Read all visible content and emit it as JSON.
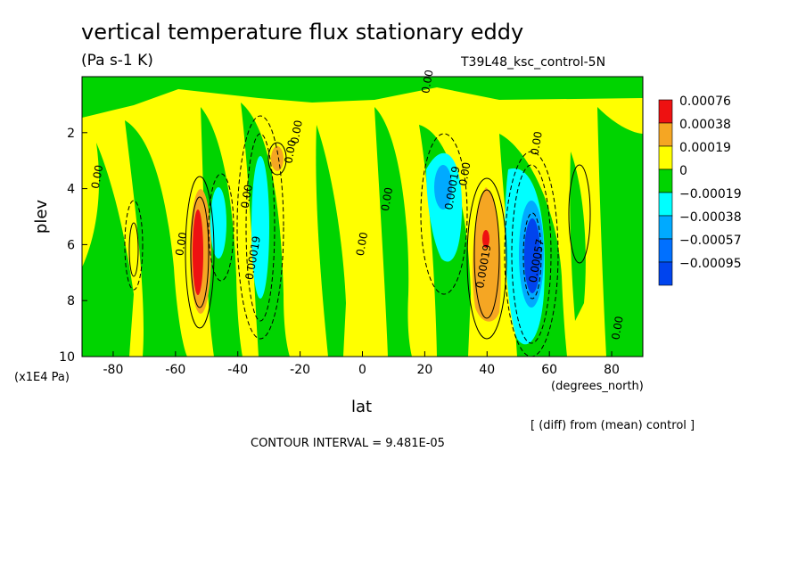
{
  "header": {
    "title": "vertical temperature flux stationary eddy",
    "units": "(Pa s-1 K)",
    "run": "T39L48_ksc_control-5N"
  },
  "footer": {
    "yunit": "(x1E4 Pa)",
    "xunit": "(degrees_north)",
    "diff_note": "[ (diff) from (mean) control ]",
    "contour_interval": "CONTOUR INTERVAL = 9.481E-05"
  },
  "chart_data": {
    "type": "heatmap",
    "title": "vertical temperature flux stationary eddy",
    "xlabel": "lat",
    "ylabel": "plev",
    "xlim": [
      -90,
      90
    ],
    "ylim": [
      0,
      10
    ],
    "y_inverted": true,
    "x_ticks": [
      -80,
      -60,
      -40,
      -20,
      0,
      20,
      40,
      60,
      80
    ],
    "y_ticks": [
      2,
      4,
      6,
      8,
      10
    ],
    "legend_position": "right",
    "legend": [
      {
        "label": "0.00076",
        "color": "#ee1111"
      },
      {
        "label": "0.00038",
        "color": "#f5a623"
      },
      {
        "label": "0.00019",
        "color": "#ffff00"
      },
      {
        "label": "0",
        "color": "#00d400"
      },
      {
        "label": "−0.00019",
        "color": "#00ffff"
      },
      {
        "label": "−0.00038",
        "color": "#00aaff"
      },
      {
        "label": "−0.00057",
        "color": "#0070ff"
      },
      {
        "label": "−0.00095",
        "color": "#0044ee"
      }
    ],
    "features": [
      {
        "lat": -53,
        "plev": 6.5,
        "value": 0.00076,
        "note": "positive maximum"
      },
      {
        "lat": -44,
        "plev": 6.0,
        "value": -0.00038
      },
      {
        "lat": -32,
        "plev": 6.0,
        "value": -0.00019
      },
      {
        "lat": -29,
        "plev": 3.2,
        "value": 0.00038
      },
      {
        "lat": 28,
        "plev": 4.5,
        "value": -0.00038
      },
      {
        "lat": 40,
        "plev": 6.5,
        "value": 0.00038,
        "peak": 0.00076
      },
      {
        "lat": 53,
        "plev": 6.3,
        "value": -0.00095,
        "note": "negative minimum"
      },
      {
        "lat": -72,
        "plev": 7.0,
        "value": 0.00019
      },
      {
        "lat": 70,
        "plev": 5.5,
        "value": 0.00019
      }
    ],
    "contour_labels": [
      {
        "text": "0.00",
        "lat": 22,
        "plev": 0.2
      },
      {
        "text": "0.00",
        "lat": -20,
        "plev": 2.0
      },
      {
        "text": "0.00",
        "lat": -22,
        "plev": 2.7
      },
      {
        "text": "0.00",
        "lat": -84,
        "plev": 3.6
      },
      {
        "text": "0.00",
        "lat": -36,
        "plev": 4.3
      },
      {
        "text": "0.00",
        "lat": 9,
        "plev": 4.4
      },
      {
        "text": "0.00",
        "lat": 1,
        "plev": 6.0
      },
      {
        "text": "0.00",
        "lat": -57,
        "plev": 6.0
      },
      {
        "text": "0.00",
        "lat": 83,
        "plev": 9.0
      },
      {
        "text": "0.00",
        "lat": 57,
        "plev": 2.4
      },
      {
        "text": "0.00",
        "lat": 34,
        "plev": 3.5
      },
      {
        "text": "0.00019",
        "lat": 30,
        "plev": 4.0
      },
      {
        "text": "0.00019",
        "lat": -34,
        "plev": 6.5
      },
      {
        "text": "0.00019",
        "lat": 40,
        "plev": 6.8
      },
      {
        "text": "0.00057",
        "lat": 57,
        "plev": 6.6
      }
    ]
  }
}
